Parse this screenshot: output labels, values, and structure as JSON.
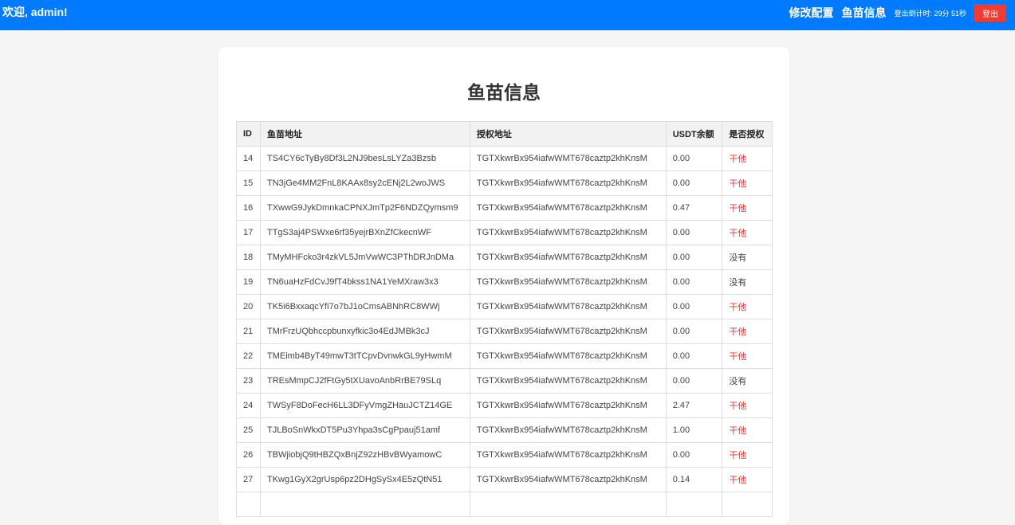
{
  "header": {
    "welcome": "欢迎, admin!",
    "nav": [
      "修改配置",
      "鱼苗信息"
    ],
    "countdown": "登出倒计时: 29分 51秒",
    "logout": "登出"
  },
  "page": {
    "title": "鱼苗信息"
  },
  "table": {
    "columns": [
      "ID",
      "鱼苗地址",
      "授权地址",
      "USDT余额",
      "是否授权"
    ],
    "rows": [
      [
        "14",
        "TS4CY6cTyBy8Df3L2NJ9besLsLYZa3Bzsb",
        "TGTXkwrBx954iafwWMT678caztp2khKnsM",
        "0.00",
        "干他"
      ],
      [
        "15",
        "TN3jGe4MM2FnL8KAAx8sy2cENj2L2woJWS",
        "TGTXkwrBx954iafwWMT678caztp2khKnsM",
        "0.00",
        "干他"
      ],
      [
        "16",
        "TXwwG9JykDmnkaCPNXJmTp2F6NDZQymsm9",
        "TGTXkwrBx954iafwWMT678caztp2khKnsM",
        "0.47",
        "干他"
      ],
      [
        "17",
        "TTgS3aj4PSWxe6rf35yejrBXnZfCkecnWF",
        "TGTXkwrBx954iafwWMT678caztp2khKnsM",
        "0.00",
        "干他"
      ],
      [
        "18",
        "TMyMHFcko3r4zkVL5JmVwWC3PThDRJnDMa",
        "TGTXkwrBx954iafwWMT678caztp2khKnsM",
        "0.00",
        "没有"
      ],
      [
        "19",
        "TN6uaHzFdCvJ9fT4bkss1NA1YeMXraw3x3",
        "TGTXkwrBx954iafwWMT678caztp2khKnsM",
        "0.00",
        "没有"
      ],
      [
        "20",
        "TK5i6BxxaqcYfi7o7bJ1oCmsABNhRC8WWj",
        "TGTXkwrBx954iafwWMT678caztp2khKnsM",
        "0.00",
        "干他"
      ],
      [
        "21",
        "TMrFrzUQbhccpbunxyfkic3o4EdJMBk3cJ",
        "TGTXkwrBx954iafwWMT678caztp2khKnsM",
        "0.00",
        "干他"
      ],
      [
        "22",
        "TMEimb4ByT49mwT3tTCpvDvnwkGL9yHwmM",
        "TGTXkwrBx954iafwWMT678caztp2khKnsM",
        "0.00",
        "干他"
      ],
      [
        "23",
        "TREsMmpCJ2fFtGy5tXUavoAnbRrBE79SLq",
        "TGTXkwrBx954iafwWMT678caztp2khKnsM",
        "0.00",
        "没有"
      ],
      [
        "24",
        "TWSyF8DoFecH6LL3DFyVmgZHauJCTZ14GE",
        "TGTXkwrBx954iafwWMT678caztp2khKnsM",
        "2.47",
        "干他"
      ],
      [
        "25",
        "TJLBoSnWkxDT5Pu3Yhpa3sCgPpauj51amf",
        "TGTXkwrBx954iafwWMT678caztp2khKnsM",
        "1.00",
        "干他"
      ],
      [
        "26",
        "TBWjiobjQ9tHBZQxBnjZ92zHBvBWyamowC",
        "TGTXkwrBx954iafwWMT678caztp2khKnsM",
        "0.00",
        "干他"
      ],
      [
        "27",
        "TKwg1GyX2grUsp6pz2DHgSySx4E5zQtN51",
        "TGTXkwrBx954iafwWMT678caztp2khKnsM",
        "0.14",
        "干他"
      ],
      [
        "",
        "",
        "",
        "",
        ""
      ]
    ]
  },
  "colors": {
    "topbar": "#007bff",
    "logout": "#f23b30",
    "authorized": "#e53935"
  }
}
